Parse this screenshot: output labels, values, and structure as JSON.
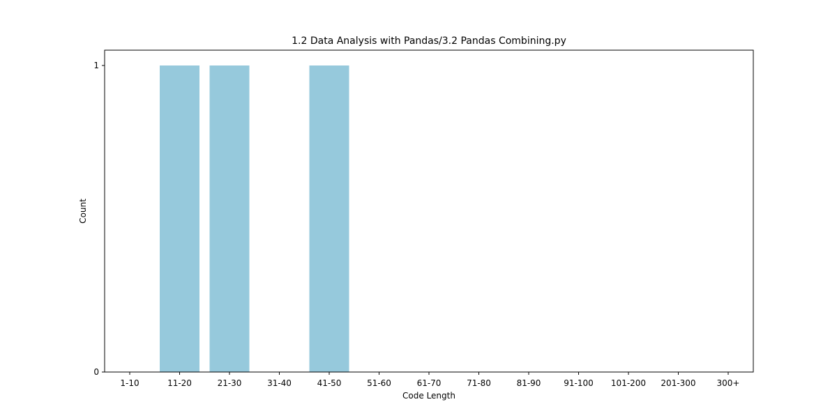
{
  "chart_data": {
    "type": "bar",
    "title": "1.2 Data Analysis with Pandas/3.2 Pandas Combining.py",
    "xlabel": "Code Length",
    "ylabel": "Count",
    "categories": [
      "1-10",
      "11-20",
      "21-30",
      "31-40",
      "41-50",
      "51-60",
      "61-70",
      "71-80",
      "81-90",
      "91-100",
      "101-200",
      "201-300",
      "300+"
    ],
    "values": [
      0,
      1,
      1,
      0,
      1,
      0,
      0,
      0,
      0,
      0,
      0,
      0,
      0
    ],
    "ylim": [
      0,
      1
    ],
    "yticks": [
      "0",
      "1"
    ],
    "bar_color": "#96c9dc",
    "grid": false,
    "legend": "none"
  }
}
